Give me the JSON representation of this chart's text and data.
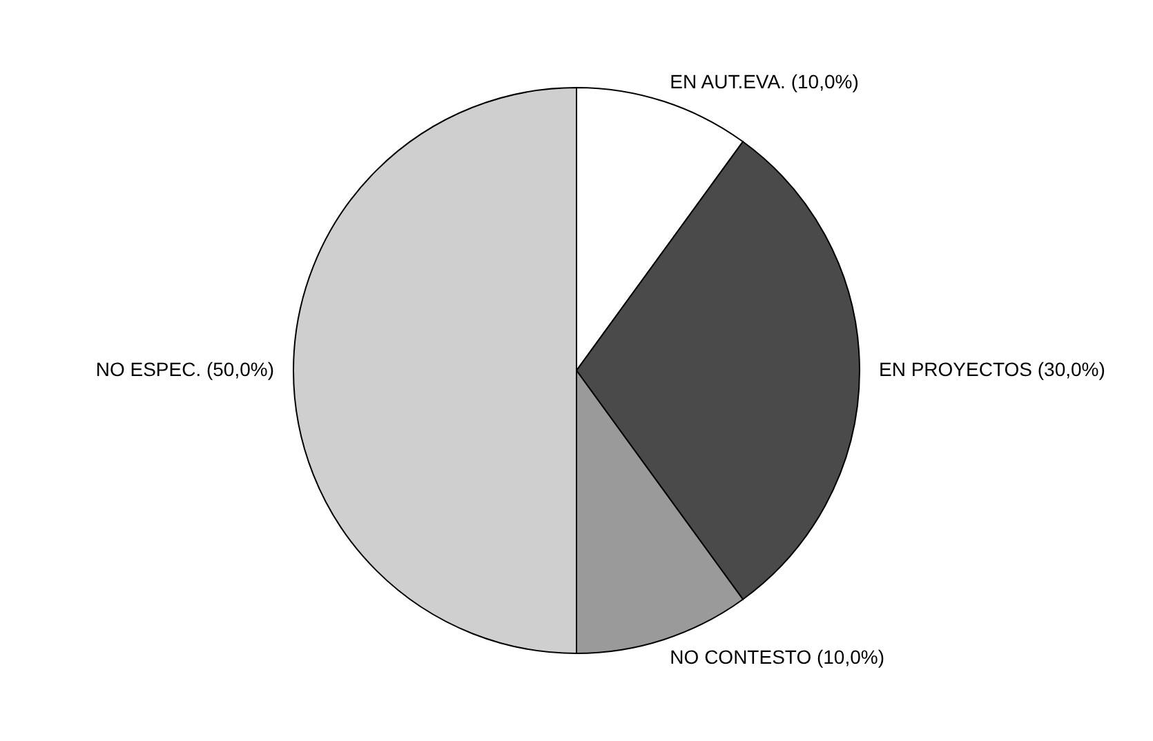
{
  "chart_data": {
    "type": "pie",
    "categories": [
      "EN AUT.EVA.",
      "EN PROYECTOS",
      "NO CONTESTO",
      "NO ESPEC."
    ],
    "values": [
      10,
      30,
      10,
      50
    ],
    "value_labels": [
      "(10,0%)",
      "(30,0%)",
      "(10,0%)",
      "(50,0%)"
    ],
    "colors": [
      "#ffffff",
      "#4a4a4a",
      "#9a9a9a",
      "#cfcfcf"
    ],
    "legend": false
  }
}
